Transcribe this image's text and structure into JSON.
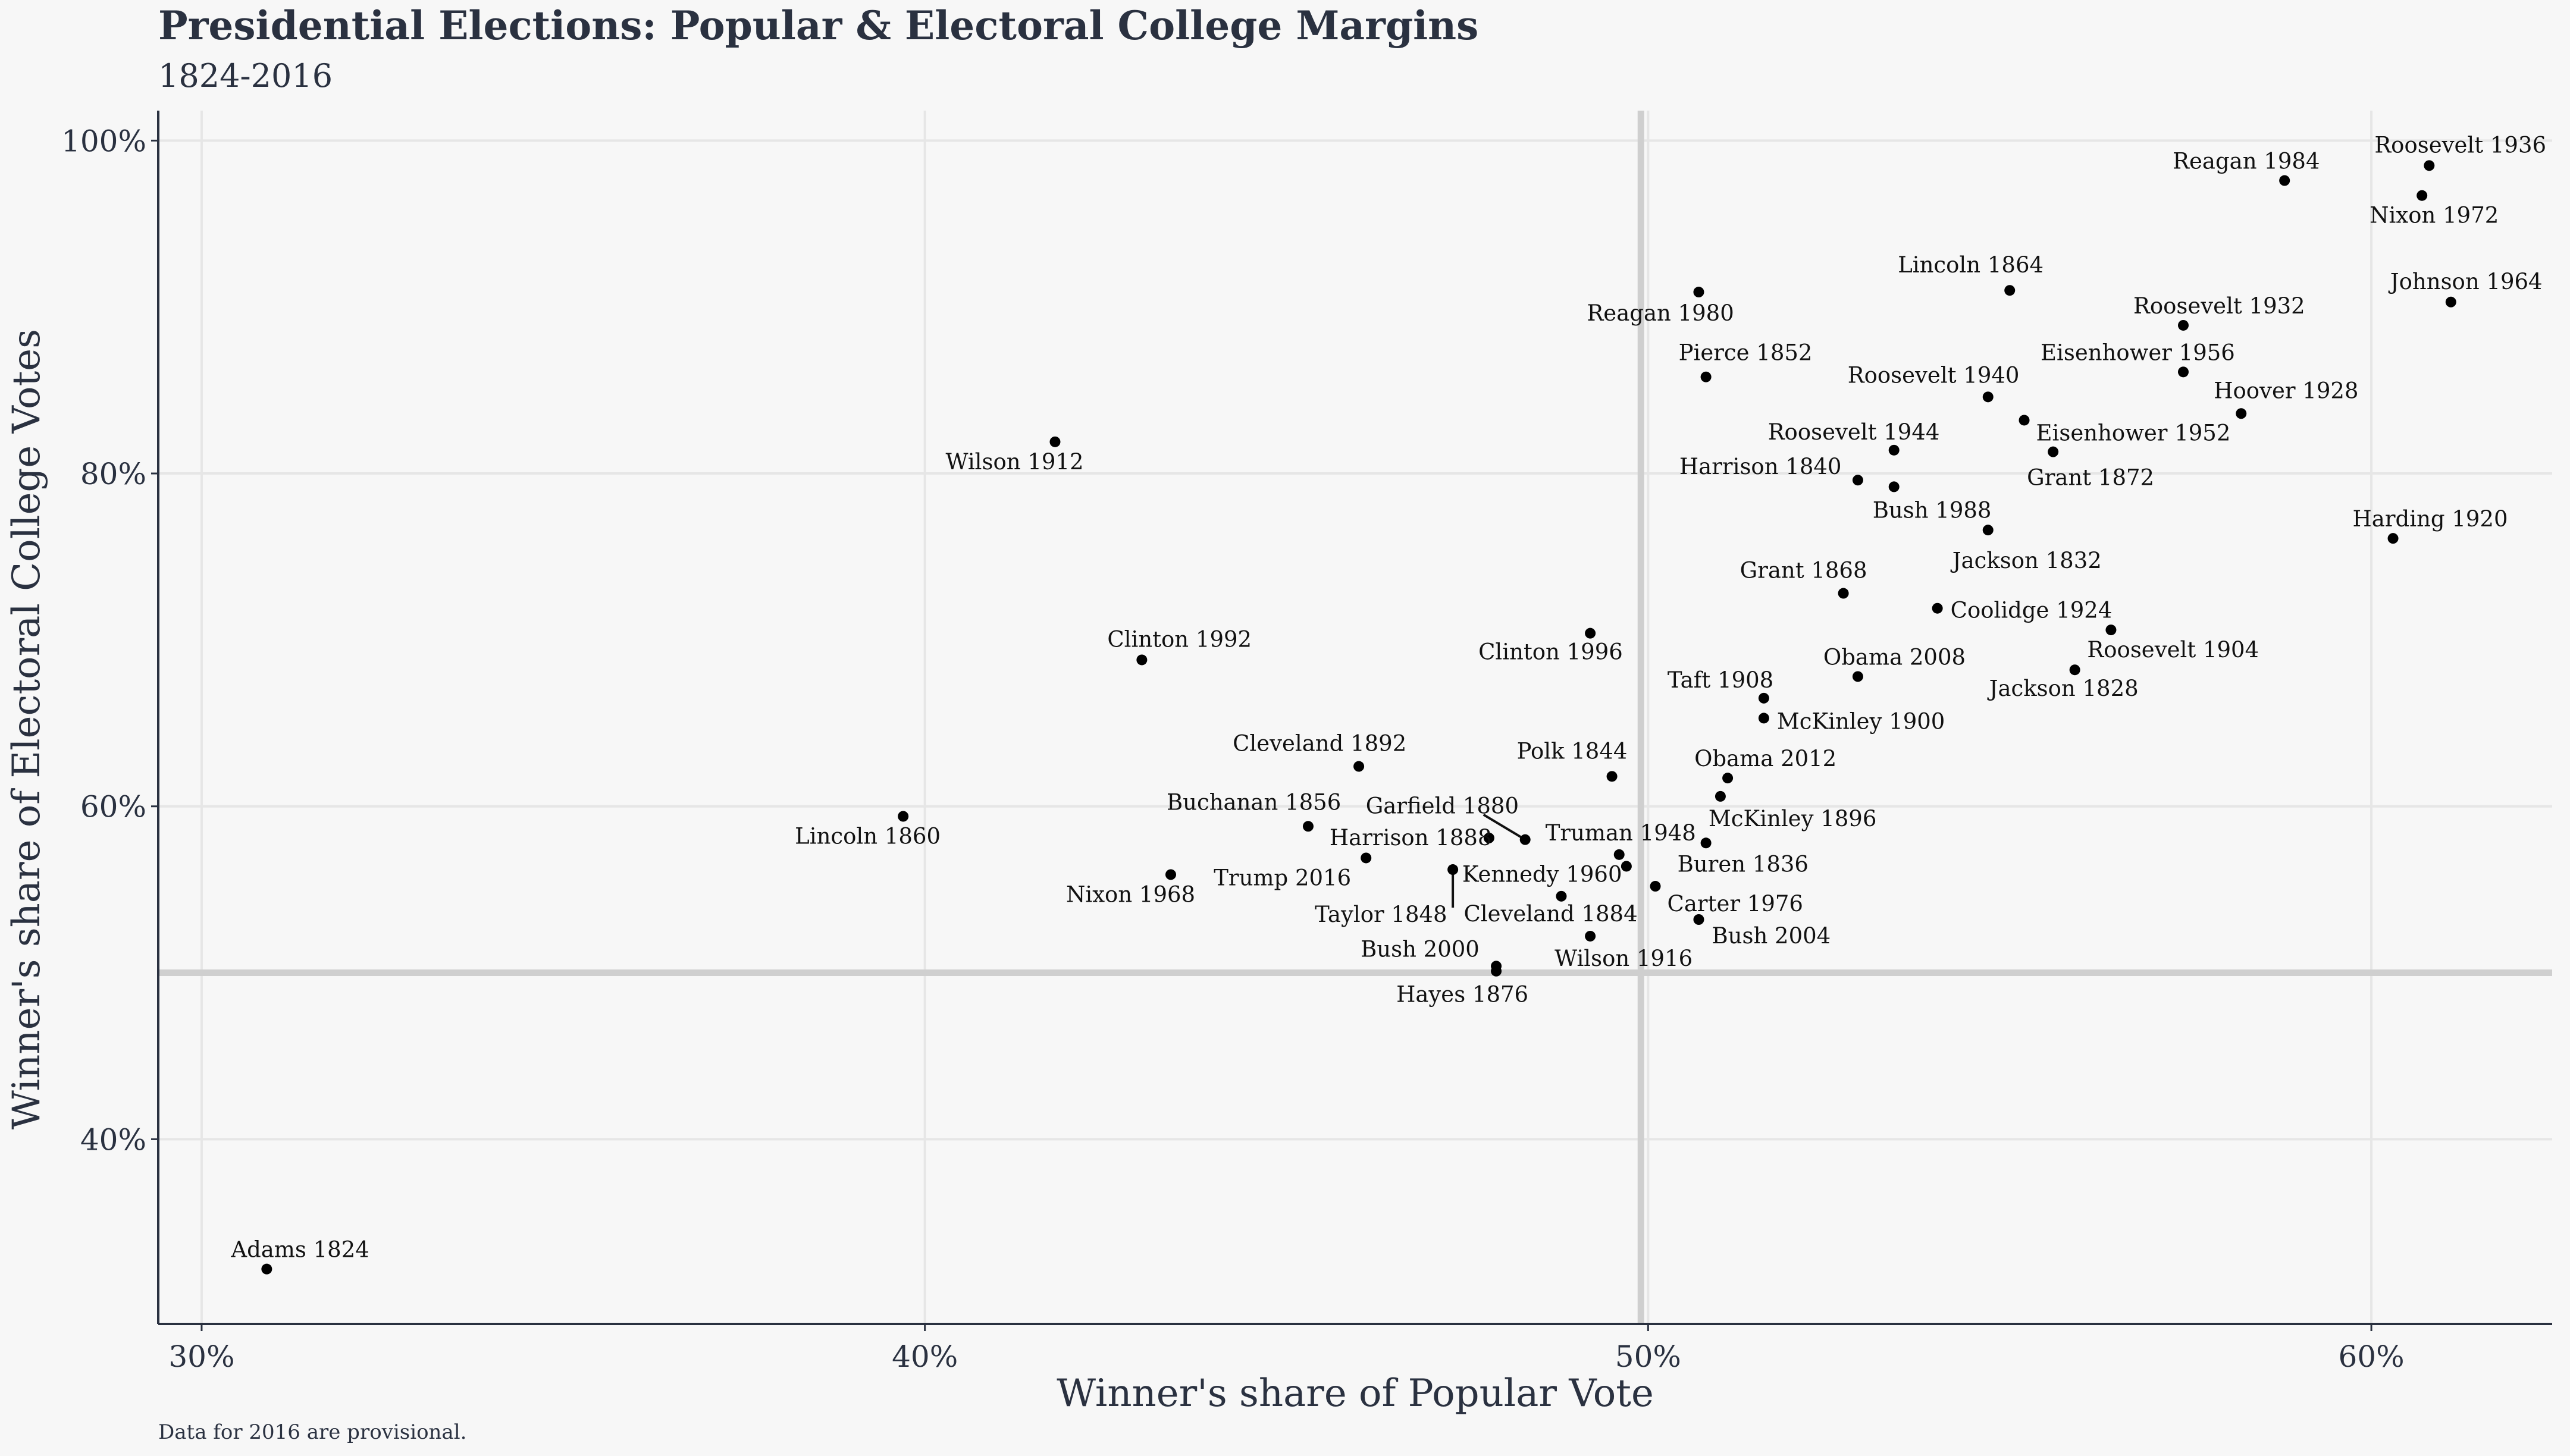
{
  "chart_data": {
    "type": "scatter",
    "title": "Presidential Elections: Popular & Electoral College Margins",
    "subtitle": "1824-2016",
    "caption": "Data for 2016 are provisional.",
    "xlabel": "Winner's share of Popular Vote",
    "ylabel": "Winner's share of Electoral College Votes",
    "xlim": [
      29.4,
      62.5
    ],
    "ylim": [
      28.9,
      101.8
    ],
    "x_ticks": [
      30,
      40,
      50,
      60
    ],
    "y_ticks": [
      40,
      60,
      80,
      100
    ],
    "x_tick_labels": [
      "30%",
      "40%",
      "50%",
      "60%"
    ],
    "y_tick_labels": [
      "40%",
      "60%",
      "80%",
      "100%"
    ],
    "reference_lines": {
      "x": 49.9,
      "y": 50
    },
    "grid": true,
    "points": [
      {
        "label": "Adams 1824",
        "x": 30.9,
        "y": 32.2
      },
      {
        "label": "Jackson 1828",
        "x": 55.9,
        "y": 68.2
      },
      {
        "label": "Jackson 1832",
        "x": 54.7,
        "y": 76.6
      },
      {
        "label": "Buren 1836",
        "x": 50.8,
        "y": 57.8
      },
      {
        "label": "Harrison 1840",
        "x": 52.9,
        "y": 79.6
      },
      {
        "label": "Polk 1844",
        "x": 49.5,
        "y": 61.8
      },
      {
        "label": "Taylor 1848",
        "x": 47.3,
        "y": 56.2
      },
      {
        "label": "Pierce 1852",
        "x": 50.8,
        "y": 85.8
      },
      {
        "label": "Buchanan 1856",
        "x": 45.3,
        "y": 58.8
      },
      {
        "label": "Lincoln 1860",
        "x": 39.7,
        "y": 59.4
      },
      {
        "label": "Lincoln 1864",
        "x": 55.0,
        "y": 91.0
      },
      {
        "label": "Grant 1868",
        "x": 52.7,
        "y": 72.8
      },
      {
        "label": "Grant 1872",
        "x": 55.6,
        "y": 81.3
      },
      {
        "label": "Hayes 1876",
        "x": 47.9,
        "y": 50.1
      },
      {
        "label": "Garfield 1880",
        "x": 48.3,
        "y": 58.0
      },
      {
        "label": "Cleveland 1884",
        "x": 48.8,
        "y": 54.6
      },
      {
        "label": "Harrison 1888",
        "x": 47.8,
        "y": 58.1
      },
      {
        "label": "Cleveland 1892",
        "x": 46.0,
        "y": 62.4
      },
      {
        "label": "McKinley 1896",
        "x": 51.0,
        "y": 60.6
      },
      {
        "label": "McKinley 1900",
        "x": 51.6,
        "y": 65.3
      },
      {
        "label": "Roosevelt 1904",
        "x": 56.4,
        "y": 70.6
      },
      {
        "label": "Taft 1908",
        "x": 51.6,
        "y": 66.5
      },
      {
        "label": "Wilson 1912",
        "x": 41.8,
        "y": 81.9
      },
      {
        "label": "Wilson 1916",
        "x": 49.2,
        "y": 52.2
      },
      {
        "label": "Harding 1920",
        "x": 60.3,
        "y": 76.1
      },
      {
        "label": "Coolidge 1924",
        "x": 54.0,
        "y": 71.9
      },
      {
        "label": "Hoover 1928",
        "x": 58.2,
        "y": 83.6
      },
      {
        "label": "Roosevelt 1932",
        "x": 57.4,
        "y": 88.9
      },
      {
        "label": "Roosevelt 1936",
        "x": 60.8,
        "y": 98.5
      },
      {
        "label": "Roosevelt 1940",
        "x": 54.7,
        "y": 84.6
      },
      {
        "label": "Roosevelt 1944",
        "x": 53.4,
        "y": 81.4
      },
      {
        "label": "Truman 1948",
        "x": 49.6,
        "y": 57.1
      },
      {
        "label": "Eisenhower 1952",
        "x": 55.2,
        "y": 83.2
      },
      {
        "label": "Eisenhower 1956",
        "x": 57.4,
        "y": 86.1
      },
      {
        "label": "Kennedy 1960",
        "x": 49.7,
        "y": 56.4
      },
      {
        "label": "Johnson 1964",
        "x": 61.1,
        "y": 90.3
      },
      {
        "label": "Nixon 1968",
        "x": 43.4,
        "y": 55.9
      },
      {
        "label": "Nixon 1972",
        "x": 60.7,
        "y": 96.7
      },
      {
        "label": "Carter 1976",
        "x": 50.1,
        "y": 55.2
      },
      {
        "label": "Reagan 1980",
        "x": 50.7,
        "y": 90.9
      },
      {
        "label": "Reagan 1984",
        "x": 58.8,
        "y": 97.6
      },
      {
        "label": "Bush 1988",
        "x": 53.4,
        "y": 79.2
      },
      {
        "label": "Clinton 1992",
        "x": 43.0,
        "y": 68.8
      },
      {
        "label": "Clinton 1996",
        "x": 49.2,
        "y": 70.4
      },
      {
        "label": "Bush 2000",
        "x": 47.9,
        "y": 50.4
      },
      {
        "label": "Bush 2004",
        "x": 50.7,
        "y": 53.2
      },
      {
        "label": "Obama 2008",
        "x": 52.9,
        "y": 67.8
      },
      {
        "label": "Obama 2012",
        "x": 51.1,
        "y": 61.7
      },
      {
        "label": "Trump 2016",
        "x": 46.1,
        "y": 56.9
      }
    ]
  }
}
